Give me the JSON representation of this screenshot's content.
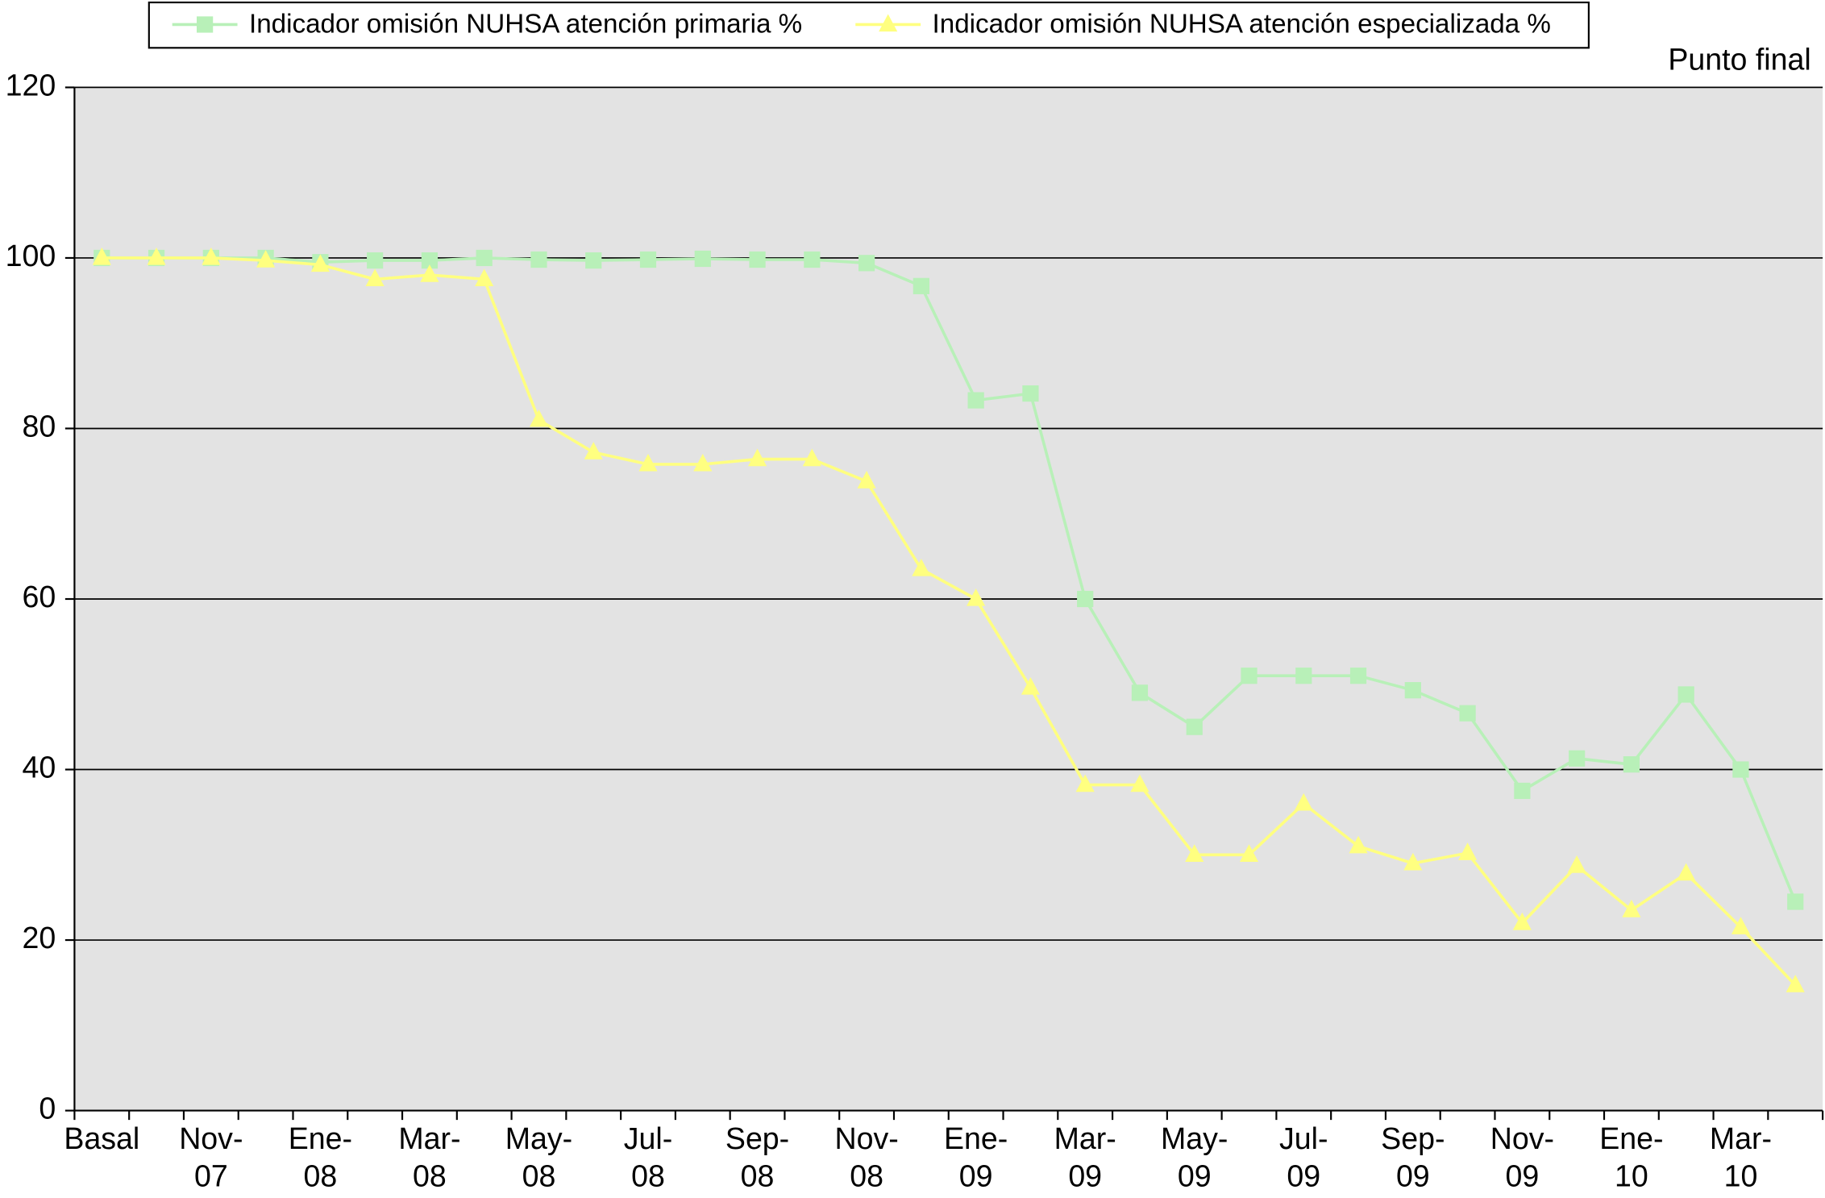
{
  "chart_data": {
    "type": "line",
    "annotation": "Punto final",
    "categories": [
      "Basal",
      null,
      "Nov-\n07",
      null,
      "Ene-\n08",
      null,
      "Mar-\n08",
      null,
      "May-\n08",
      null,
      "Jul-\n08",
      null,
      "Sep-\n08",
      null,
      "Nov-\n08",
      null,
      "Ene-\n09",
      null,
      "Mar-\n09",
      null,
      "May-\n09",
      null,
      "Jul-\n09",
      null,
      "Sep-\n09",
      null,
      "Nov-\n09",
      null,
      "Ene-\n10",
      null,
      "Mar-\n10",
      null
    ],
    "series": [
      {
        "name": "Indicador omisión NUHSA atención primaria %",
        "color": "#b8f0b8",
        "marker": "square",
        "values": [
          100,
          100,
          100,
          100,
          99.5,
          99.7,
          99.7,
          100,
          99.8,
          99.7,
          99.8,
          99.9,
          99.8,
          99.8,
          99.4,
          96.7,
          83.3,
          84.1,
          60,
          49,
          45,
          51,
          51,
          51,
          49.3,
          46.6,
          37.5,
          41.3,
          40.6,
          48.8,
          40,
          24.5
        ]
      },
      {
        "name": "Indicador omisión NUHSA atención especializada %",
        "color": "#ffff80",
        "marker": "triangle",
        "values": [
          100,
          100,
          100,
          99.7,
          99.2,
          97.5,
          98,
          97.5,
          81,
          77.2,
          75.8,
          75.8,
          76.4,
          76.4,
          73.8,
          63.5,
          60,
          49.6,
          38.2,
          38.2,
          30,
          30,
          36,
          31,
          29,
          30.2,
          22,
          28.7,
          23.5,
          27.8,
          21.5,
          14.7
        ]
      }
    ],
    "ylim": [
      0,
      120
    ],
    "yticks": [
      0,
      20,
      40,
      60,
      80,
      100,
      120
    ],
    "grid": true,
    "legend": "top"
  }
}
